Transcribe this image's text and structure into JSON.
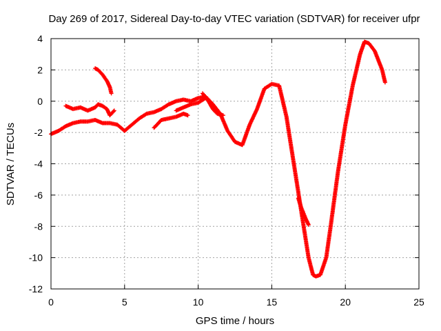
{
  "chart_data": {
    "type": "scatter",
    "title": "Day 269 of 2017, Sidereal Day-to-day VTEC variation (SDTVAR) for receiver ufpr",
    "xlabel": "GPS time / hours",
    "ylabel": "SDTVAR / TECUs",
    "xlim": [
      0,
      25
    ],
    "ylim": [
      -12,
      4
    ],
    "xticks": [
      0,
      5,
      10,
      15,
      20,
      25
    ],
    "yticks": [
      -12,
      -10,
      -8,
      -6,
      -4,
      -2,
      0,
      2,
      4
    ],
    "grid": true,
    "marker": "+",
    "color": "#ff0000",
    "series": [
      {
        "name": "trace-main",
        "x": [
          0.0,
          0.5,
          1.0,
          1.5,
          2.0,
          2.5,
          3.0,
          3.5,
          4.0,
          4.5,
          5.0,
          5.5,
          6.0,
          6.5,
          7.0,
          7.5,
          8.0,
          8.5,
          9.0,
          9.5,
          10.0,
          10.5,
          11.0,
          11.5,
          12.0,
          12.5,
          13.0,
          13.5,
          14.0,
          14.5,
          15.0,
          15.5,
          16.0,
          16.5,
          17.0,
          17.5,
          17.8,
          18.0,
          18.3,
          18.7,
          19.0,
          19.5,
          20.0,
          20.5,
          21.0,
          21.3,
          21.6,
          22.0,
          22.5,
          22.7
        ],
        "y": [
          -2.1,
          -1.9,
          -1.6,
          -1.4,
          -1.3,
          -1.3,
          -1.2,
          -1.4,
          -1.4,
          -1.5,
          -1.9,
          -1.5,
          -1.1,
          -0.8,
          -0.7,
          -0.5,
          -0.2,
          0.0,
          0.1,
          0.0,
          0.2,
          0.3,
          -0.2,
          -0.8,
          -1.9,
          -2.6,
          -2.8,
          -1.5,
          -0.5,
          0.8,
          1.1,
          1.0,
          -1.0,
          -4.0,
          -7.0,
          -10.0,
          -11.1,
          -11.2,
          -11.1,
          -10.0,
          -8.0,
          -4.5,
          -1.5,
          1.0,
          3.0,
          3.8,
          3.7,
          3.2,
          2.0,
          1.2
        ]
      },
      {
        "name": "trace-upper-early",
        "x": [
          1.0,
          1.5,
          2.0,
          2.5,
          3.0,
          3.2,
          3.5,
          3.8,
          4.0,
          4.3
        ],
        "y": [
          -0.3,
          -0.5,
          -0.4,
          -0.6,
          -0.4,
          -0.2,
          -0.3,
          -0.5,
          -0.9,
          -0.6
        ]
      },
      {
        "name": "trace-arc-3h",
        "x": [
          3.0,
          3.2,
          3.5,
          3.8,
          4.0,
          4.1
        ],
        "y": [
          2.1,
          2.0,
          1.7,
          1.3,
          0.9,
          0.5
        ]
      },
      {
        "name": "trace-7-9h",
        "x": [
          7.0,
          7.5,
          8.0,
          8.5,
          9.0,
          9.3
        ],
        "y": [
          -1.7,
          -1.2,
          -1.1,
          -1.0,
          -0.8,
          -0.9
        ]
      },
      {
        "name": "trace-8-10h",
        "x": [
          8.5,
          9.0,
          9.5,
          10.0,
          10.5
        ],
        "y": [
          -0.6,
          -0.4,
          -0.2,
          -0.1,
          0.2
        ]
      },
      {
        "name": "trace-10-12h",
        "x": [
          10.3,
          10.7,
          11.0,
          11.3,
          11.7
        ],
        "y": [
          0.5,
          0.0,
          -0.5,
          -0.8,
          -0.9
        ]
      },
      {
        "name": "trace-17h",
        "x": [
          16.8,
          17.0,
          17.3,
          17.5
        ],
        "y": [
          -6.2,
          -6.8,
          -7.5,
          -7.9
        ]
      }
    ]
  }
}
